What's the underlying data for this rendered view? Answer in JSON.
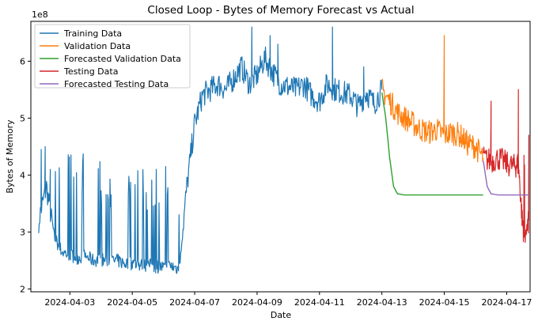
{
  "chart_data": {
    "type": "line",
    "title": "Closed Loop - Bytes of Memory Forecast vs Actual",
    "xlabel": "Date",
    "ylabel": "Bytes of Memory",
    "y_offset_label": "1e8",
    "y_unit": 100000000,
    "xlim": [
      "2024-04-01T18:00",
      "2024-04-17T18:00"
    ],
    "ylim": [
      1.95,
      6.7
    ],
    "x_ticks": [
      "2024-04-03",
      "2024-04-05",
      "2024-04-07",
      "2024-04-09",
      "2024-04-11",
      "2024-04-13",
      "2024-04-15",
      "2024-04-17"
    ],
    "y_ticks": [
      2,
      3,
      4,
      5,
      6
    ],
    "grid": false,
    "legend_position": "upper-left",
    "series": [
      {
        "name": "Training Data",
        "color": "#1f77b4",
        "x": [
          "2024-04-02T00:00",
          "2024-04-02T06:00",
          "2024-04-02T12:00",
          "2024-04-02T18:00",
          "2024-04-03T00:00",
          "2024-04-03T06:00",
          "2024-04-03T12:00",
          "2024-04-03T18:00",
          "2024-04-04T00:00",
          "2024-04-04T06:00",
          "2024-04-04T12:00",
          "2024-04-04T18:00",
          "2024-04-05T00:00",
          "2024-04-05T06:00",
          "2024-04-05T12:00",
          "2024-04-05T18:00",
          "2024-04-06T00:00",
          "2024-04-06T06:00",
          "2024-04-06T12:00",
          "2024-04-06T18:00",
          "2024-04-07T00:00",
          "2024-04-07T06:00",
          "2024-04-07T12:00",
          "2024-04-07T18:00",
          "2024-04-08T00:00",
          "2024-04-08T06:00",
          "2024-04-08T12:00",
          "2024-04-08T18:00",
          "2024-04-09T00:00",
          "2024-04-09T06:00",
          "2024-04-09T12:00",
          "2024-04-09T18:00",
          "2024-04-10T00:00",
          "2024-04-10T06:00",
          "2024-04-10T12:00",
          "2024-04-10T18:00",
          "2024-04-11T00:00",
          "2024-04-11T06:00",
          "2024-04-11T12:00",
          "2024-04-11T18:00",
          "2024-04-12T00:00",
          "2024-04-12T06:00",
          "2024-04-12T12:00",
          "2024-04-12T18:00",
          "2024-04-13T00:00"
        ],
        "values": [
          3.2,
          3.8,
          2.9,
          2.65,
          2.6,
          2.55,
          2.58,
          2.5,
          2.52,
          2.48,
          2.5,
          2.45,
          2.45,
          2.42,
          2.42,
          2.4,
          2.38,
          2.4,
          2.35,
          3.8,
          4.9,
          5.4,
          5.5,
          5.6,
          5.5,
          5.7,
          5.9,
          5.6,
          5.75,
          6.05,
          5.8,
          5.6,
          5.55,
          5.5,
          5.6,
          5.4,
          5.3,
          5.6,
          5.5,
          5.45,
          5.4,
          5.2,
          5.45,
          5.25,
          5.5
        ],
        "x_peaks": [
          "2024-04-02T02:00",
          "2024-04-02T05:00",
          "2024-04-02T09:00",
          "2024-04-08T20:00",
          "2024-04-09T10:00",
          "2024-04-09T16:00",
          "2024-04-11T10:00",
          "2024-04-12T10:00"
        ],
        "peak_values": [
          4.45,
          4.5,
          4.1,
          6.6,
          6.45,
          6.3,
          6.6,
          5.9
        ]
      },
      {
        "name": "Validation Data",
        "color": "#ff7f0e",
        "x": [
          "2024-04-13T00:00",
          "2024-04-13T06:00",
          "2024-04-13T12:00",
          "2024-04-13T18:00",
          "2024-04-14T00:00",
          "2024-04-14T06:00",
          "2024-04-14T12:00",
          "2024-04-14T18:00",
          "2024-04-15T00:00",
          "2024-04-15T06:00",
          "2024-04-15T12:00",
          "2024-04-15T18:00",
          "2024-04-16T00:00",
          "2024-04-16T06:00"
        ],
        "values": [
          5.5,
          5.3,
          5.1,
          5.0,
          4.9,
          4.8,
          4.75,
          4.8,
          4.7,
          4.75,
          4.7,
          4.55,
          4.5,
          4.3
        ],
        "x_peaks": [
          "2024-04-15T00:00"
        ],
        "peak_values": [
          6.45
        ]
      },
      {
        "name": "Forecasted Validation Data",
        "color": "#2ca02c",
        "x": [
          "2024-04-13T00:00",
          "2024-04-13T03:00",
          "2024-04-13T06:00",
          "2024-04-13T09:00",
          "2024-04-13T12:00",
          "2024-04-13T18:00",
          "2024-04-14T06:00",
          "2024-04-15T00:00",
          "2024-04-16T06:00"
        ],
        "values": [
          5.45,
          5.0,
          4.3,
          3.8,
          3.67,
          3.65,
          3.65,
          3.65,
          3.65
        ]
      },
      {
        "name": "Testing Data",
        "color": "#d62728",
        "x": [
          "2024-04-16T06:00",
          "2024-04-16T12:00",
          "2024-04-16T18:00",
          "2024-04-17T00:00",
          "2024-04-17T06:00",
          "2024-04-17T09:00",
          "2024-04-17T12:00",
          "2024-04-17T14:00",
          "2024-04-17T17:00"
        ],
        "values": [
          4.3,
          4.25,
          4.3,
          4.2,
          4.15,
          4.2,
          3.2,
          2.85,
          3.2
        ],
        "x_peaks": [
          "2024-04-16T12:00",
          "2024-04-17T09:00",
          "2024-04-17T17:00"
        ],
        "peak_values": [
          5.3,
          5.5,
          4.7
        ]
      },
      {
        "name": "Forecasted Testing Data",
        "color": "#9467bd",
        "x": [
          "2024-04-16T06:00",
          "2024-04-16T09:00",
          "2024-04-16T12:00",
          "2024-04-16T18:00",
          "2024-04-17T06:00",
          "2024-04-17T17:00"
        ],
        "values": [
          4.25,
          3.8,
          3.67,
          3.65,
          3.65,
          3.65
        ]
      }
    ]
  }
}
